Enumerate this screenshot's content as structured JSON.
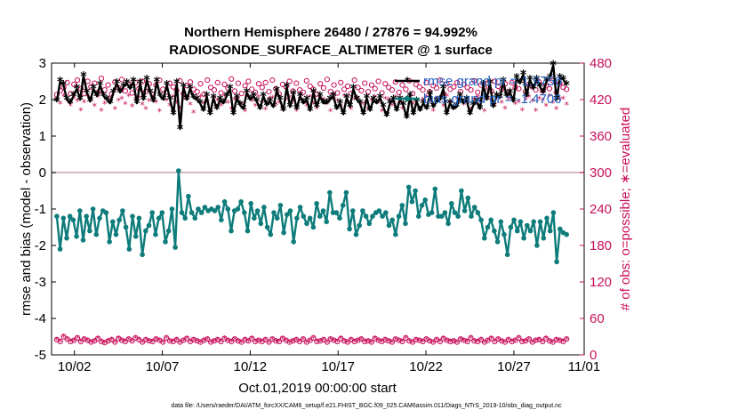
{
  "chart_data": {
    "type": "line",
    "title": "Northern Hemisphere 26480 / 27876 = 94.992%",
    "subtitle": "RADIOSONDE_SURFACE_ALTIMETER @ 1 surface",
    "xlabel": "Oct.01,2019 00:00:00 start",
    "ylabel_left": "rmse and bias (model - observation)",
    "ylabel_right": "# of obs: o=possible; ∗=evaluated",
    "footnote": "data file: /Users/raeder/DAI/ATM_forcXX/CAM6_setup/f.e21.FHIST_BGC.f09_025.CAM6assim.011/Diags_NTrS_2019-10/obs_diag_output.nc",
    "xlim": [
      0.7,
      31.0
    ],
    "ylim_left": [
      -5,
      3
    ],
    "ylim_right": [
      0,
      480
    ],
    "x_tick_labels": [
      "10/02",
      "10/07",
      "10/12",
      "10/17",
      "10/22",
      "10/27",
      "11/01"
    ],
    "x_tick_values": [
      2,
      7,
      12,
      17,
      22,
      27,
      32
    ],
    "y_left_ticks": [
      "-5",
      "-4",
      "-3",
      "-2",
      "-1",
      "0",
      "1",
      "2",
      "3"
    ],
    "y_right_ticks": [
      "0",
      "60",
      "120",
      "180",
      "240",
      "300",
      "360",
      "420",
      "480"
    ],
    "zero_line": 0,
    "colors": {
      "rmse": "#000000",
      "bias": "#0e7c7b",
      "obs": "#c8105a",
      "zero": "#c8a0a8",
      "legend_text": "#1f5fbf"
    },
    "legend": {
      "position": "top-right",
      "rmse_label": "rmse grand pr = 1.9756",
      "bias_label": "bias grand pr = -1.4706"
    },
    "series": [
      {
        "name": "rmse",
        "axis": "left",
        "values": [
          1.95,
          2.5,
          2.4,
          2.0,
          1.9,
          2.1,
          2.3,
          2.0,
          2.65,
          2.2,
          1.95,
          2.3,
          2.1,
          2.4,
          2.1,
          2.0,
          1.9,
          2.2,
          2.45,
          2.2,
          2.35,
          2.45,
          2.3,
          2.5,
          1.9,
          2.45,
          2.0,
          2.55,
          2.2,
          1.95,
          2.5,
          2.1,
          2.0,
          2.4,
          2.0,
          1.6,
          2.45,
          1.2,
          2.35,
          2.0,
          2.3,
          2.05,
          2.0,
          1.9,
          1.7,
          2.1,
          1.6,
          2.05,
          1.75,
          2.0,
          1.9,
          2.1,
          2.3,
          1.6,
          2.05,
          1.85,
          1.75,
          2.2,
          2.0,
          2.1,
          1.95,
          1.75,
          2.1,
          1.85,
          1.95,
          1.8,
          2.25,
          2.0,
          1.7,
          2.35,
          1.8,
          2.15,
          1.75,
          2.1,
          1.9,
          2.0,
          1.7,
          2.2,
          1.8,
          2.1,
          1.9,
          1.9,
          2.0,
          2.1,
          1.75,
          1.9,
          1.6,
          2.05,
          1.8,
          2.3,
          2.0,
          1.9,
          1.6,
          2.05,
          1.7,
          2.0,
          1.9,
          2.05,
          1.8,
          1.55,
          1.9,
          2.0,
          1.7,
          2.0,
          1.85,
          1.5,
          2.1,
          1.6,
          1.95,
          1.7,
          1.9,
          1.75,
          2.15,
          1.8,
          1.95,
          2.0,
          2.3,
          1.6,
          1.9,
          1.75,
          1.8,
          2.1,
          1.9,
          2.0,
          1.6,
          1.85,
          1.95,
          1.75,
          2.4,
          2.0,
          2.45,
          1.8,
          2.1,
          2.05,
          2.5,
          2.1,
          2.2,
          1.95,
          2.6,
          2.45,
          2.7,
          2.1,
          2.55,
          2.3,
          2.55,
          2.35,
          2.2,
          2.5,
          2.6,
          2.95,
          2.0,
          2.6,
          2.55,
          2.4
        ]
      },
      {
        "name": "bias",
        "axis": "left",
        "values": [
          -1.2,
          -2.1,
          -1.25,
          -1.8,
          -1.2,
          -1.3,
          -1.75,
          -1.05,
          -1.85,
          -1.2,
          -1.6,
          -1.0,
          -1.7,
          -1.25,
          -1.05,
          -1.1,
          -1.9,
          -1.35,
          -1.7,
          -1.3,
          -1.05,
          -1.5,
          -2.1,
          -1.2,
          -1.75,
          -1.25,
          -2.25,
          -1.6,
          -1.45,
          -1.1,
          -1.7,
          -1.25,
          -1.1,
          -1.9,
          -1.6,
          -1.0,
          -2.05,
          0.05,
          -1.1,
          -1.25,
          -0.65,
          -1.1,
          -1.25,
          -1.0,
          -1.1,
          -0.95,
          -1.05,
          -1.0,
          -1.05,
          -0.95,
          -1.3,
          -0.8,
          -1.0,
          -1.6,
          -1.05,
          -1.0,
          -0.8,
          -1.1,
          -1.6,
          -0.85,
          -1.25,
          -1.05,
          -1.4,
          -0.95,
          -1.5,
          -1.7,
          -1.1,
          -1.25,
          -0.9,
          -1.65,
          -1.15,
          -1.05,
          -1.9,
          -1.25,
          -0.95,
          -1.2,
          -1.4,
          -1.25,
          -1.5,
          -0.85,
          -1.2,
          -1.05,
          -1.35,
          -0.55,
          -1.1,
          -1.1,
          -1.25,
          -0.9,
          -0.55,
          -1.55,
          -1.05,
          -1.7,
          -1.45,
          -1.05,
          -1.2,
          -1.4,
          -1.2,
          -1.1,
          -1.05,
          -1.2,
          -1.1,
          -1.45,
          -1.3,
          -1.7,
          -1.2,
          -0.9,
          -1.4,
          -0.4,
          -0.8,
          -0.5,
          -1.2,
          -0.9,
          -0.75,
          -1.15,
          -1.1,
          -0.45,
          -1.2,
          -1.2,
          -1.1,
          -1.4,
          -0.85,
          -1.1,
          -1.2,
          -0.5,
          -1.05,
          -0.7,
          -1.2,
          -0.95,
          -1.1,
          -1.3,
          -1.8,
          -1.5,
          -1.3,
          -1.6,
          -1.9,
          -1.35,
          -1.7,
          -2.25,
          -1.5,
          -1.3,
          -1.6,
          -1.35,
          -1.8,
          -1.45,
          -1.6,
          -1.35,
          -2.0,
          -1.35,
          -1.8,
          -1.25,
          -1.6,
          -1.1,
          -2.45,
          -1.55,
          -1.65,
          -1.7
        ]
      },
      {
        "name": "possible",
        "axis": "right",
        "marker": "o",
        "values": [
          25,
          22,
          30,
          26,
          22,
          24,
          28,
          22,
          26,
          24,
          21,
          23,
          27,
          22,
          20,
          23,
          25,
          21,
          27,
          24,
          22,
          26,
          23,
          28,
          25,
          21,
          25,
          23,
          22,
          26,
          24,
          21,
          28,
          23,
          22,
          25,
          21,
          24,
          27,
          22,
          25,
          23,
          21,
          24,
          26,
          21,
          23,
          25,
          22,
          27,
          24,
          22,
          26,
          23,
          21,
          25,
          23,
          27,
          22,
          24,
          22,
          25,
          21,
          26,
          23,
          22,
          27,
          24,
          21,
          23,
          25,
          22,
          26,
          21,
          24,
          28,
          22,
          23,
          25,
          21,
          26,
          24,
          22,
          27,
          23,
          21,
          25,
          22,
          24,
          26,
          22,
          23,
          21,
          27,
          24,
          22,
          25,
          23,
          21,
          26,
          24,
          22,
          28,
          23,
          21,
          25,
          24,
          22,
          26,
          23,
          21,
          25,
          22,
          27,
          24,
          22,
          23,
          21,
          26,
          24,
          22,
          28,
          23,
          22,
          25,
          21,
          24,
          27,
          22,
          26,
          23,
          21,
          25,
          22,
          24,
          28,
          22,
          23,
          26,
          21,
          24,
          25,
          22,
          27,
          23,
          21,
          25,
          24,
          22,
          26
        ]
      },
      {
        "name": "evaluated",
        "axis": "right",
        "marker": "*",
        "values": [
          24,
          21,
          29,
          25,
          21,
          23,
          27,
          21,
          25,
          23,
          20,
          22,
          26,
          21,
          19,
          22,
          24,
          20,
          26,
          23,
          21,
          25,
          22,
          27,
          24,
          20,
          24,
          22,
          21,
          25,
          23,
          20,
          27,
          22,
          21,
          24,
          20,
          23,
          26,
          21,
          24,
          22,
          20,
          23,
          25,
          20,
          22,
          24,
          21,
          26,
          23,
          21,
          25,
          22,
          20,
          24,
          22,
          26,
          21,
          23,
          21,
          24,
          20,
          25,
          22,
          21,
          26,
          23,
          20,
          22,
          24,
          21,
          25,
          20,
          23,
          27,
          21,
          22,
          24,
          20,
          25,
          23,
          21,
          26,
          22,
          20,
          24,
          21,
          23,
          25,
          21,
          22,
          20,
          26,
          23,
          21,
          24,
          22,
          20,
          25,
          23,
          21,
          27,
          22,
          20,
          24,
          23,
          21,
          25,
          22,
          20,
          24,
          21,
          26,
          23,
          21,
          22,
          20,
          25,
          23,
          21,
          27,
          22,
          21,
          24,
          20,
          23,
          26,
          21,
          25,
          22,
          20,
          24,
          21,
          23,
          27,
          21,
          22,
          25,
          20,
          23,
          24,
          21,
          26,
          22,
          20,
          24,
          23,
          21,
          25
        ]
      },
      {
        "name": "possible_top",
        "axis": "right",
        "marker": "o",
        "values": [
          428,
          435,
          440,
          448,
          430,
          445,
          452,
          438,
          430,
          450,
          441,
          447,
          432,
          455,
          436,
          444,
          429,
          449,
          439,
          453,
          434,
          446,
          431,
          448,
          438,
          450,
          433,
          446,
          428,
          444,
          452,
          437,
          432,
          447,
          441,
          435,
          451,
          430,
          443,
          449,
          437,
          433,
          446,
          429,
          452,
          440,
          436,
          448,
          431,
          445,
          439,
          454,
          434,
          447,
          430,
          443,
          450,
          437,
          432,
          446,
          440,
          448,
          433,
          452,
          438,
          429,
          445,
          441,
          450,
          434,
          447,
          436,
          432,
          451,
          442,
          437,
          429,
          446,
          439,
          453,
          433,
          444,
          431,
          448,
          437,
          442,
          430,
          452,
          440,
          435,
          447,
          433,
          444,
          438,
          450,
          431,
          446,
          440,
          436,
          449,
          432,
          444,
          437,
          451,
          430,
          445,
          441,
          436,
          448,
          433,
          443,
          439,
          452,
          430,
          446,
          437,
          441,
          448,
          433,
          445,
          440,
          436,
          451,
          432,
          444,
          439,
          447,
          434,
          450,
          442,
          437,
          446,
          432,
          448,
          440,
          438,
          452,
          433,
          445,
          441,
          436,
          449,
          434,
          443,
          438,
          451,
          432,
          447,
          440,
          437
        ]
      },
      {
        "name": "evaluated_top",
        "axis": "right",
        "marker": "*",
        "values": [
          420,
          413,
          425,
          418,
          410,
          422,
          417,
          402,
          415,
          425,
          419,
          409,
          424,
          401,
          413,
          420,
          423,
          404,
          418,
          421,
          412,
          425,
          408,
          419,
          422,
          411,
          404,
          417,
          423,
          415,
          400,
          420,
          418,
          410,
          424,
          414,
          405,
          421,
          419,
          411,
          398,
          420,
          424,
          413,
          415,
          402,
          422,
          418,
          410,
          425,
          414,
          404,
          419,
          421,
          412,
          400,
          423,
          417,
          409,
          424,
          415,
          403,
          420,
          422,
          411,
          414,
          405,
          419,
          423,
          416,
          401,
          420,
          418,
          410,
          424,
          413,
          405,
          421,
          419,
          412,
          400,
          422,
          417,
          409,
          425,
          414,
          404,
          420,
          421,
          411,
          413,
          403,
          418,
          424,
          415,
          400,
          421,
          419,
          410,
          423,
          413,
          405,
          420,
          422,
          412,
          415,
          402,
          419,
          424,
          416,
          401,
          421,
          418,
          409,
          425,
          414,
          404,
          420,
          421,
          411,
          413,
          403,
          419,
          423,
          416,
          400,
          421,
          418,
          410,
          424,
          414,
          405,
          420,
          422,
          412,
          415,
          402,
          419,
          424,
          416,
          401,
          421,
          418,
          409,
          425,
          414,
          404,
          420,
          421,
          411
        ]
      }
    ]
  }
}
